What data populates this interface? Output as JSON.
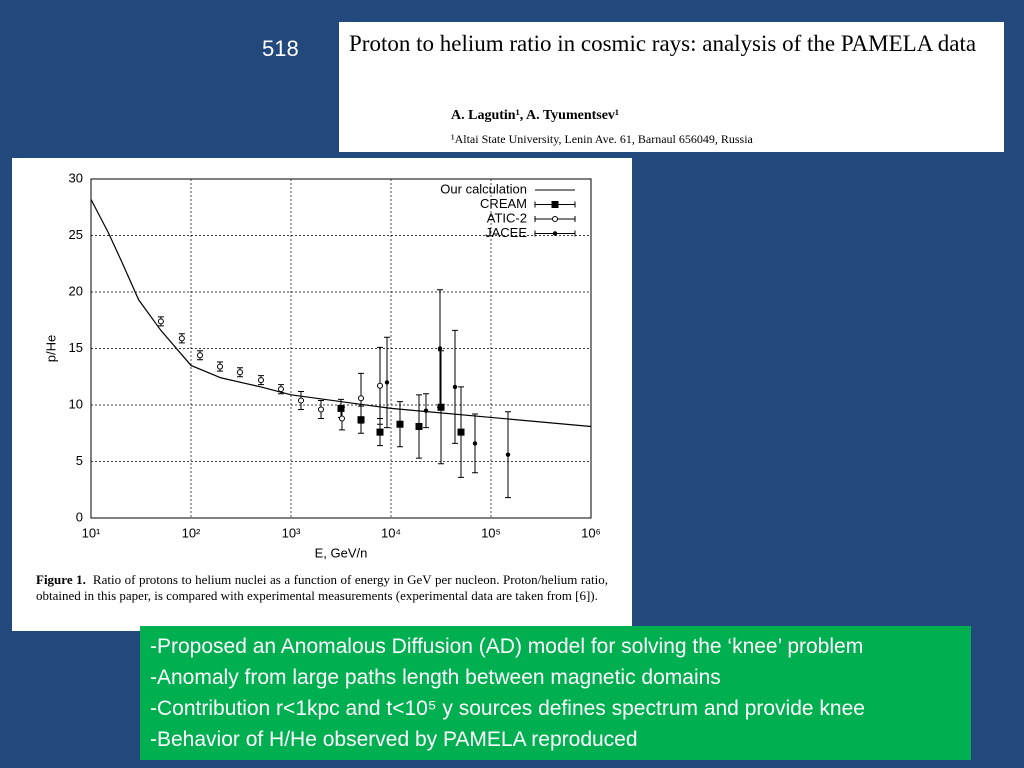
{
  "page_number": "518",
  "paper": {
    "title": "Proton to helium ratio in cosmic rays: analysis of the PAMELA data",
    "authors": "A. Lagutin¹, A. Tyumentsev¹",
    "affiliation": "¹Altai State University, Lenin Ave. 61, Barnaul 656049, Russia"
  },
  "chart_data": {
    "type": "scatter",
    "x_label": "E, GeV/n",
    "y_label": "p/He",
    "xscale": "log",
    "grid": true,
    "legend": "top-right",
    "xlim": [
      10,
      1000000
    ],
    "xticks": [
      {
        "value": 10,
        "label": "10¹"
      },
      {
        "value": 100,
        "label": "10²"
      },
      {
        "value": 1000,
        "label": "10³"
      },
      {
        "value": 10000,
        "label": "10⁴"
      },
      {
        "value": 100000,
        "label": "10⁵"
      },
      {
        "value": 1000000,
        "label": "10⁶"
      }
    ],
    "ylim": [
      0,
      30
    ],
    "yticks": [
      0,
      5,
      10,
      15,
      20,
      25,
      30
    ],
    "series": [
      {
        "name": "Our calculation",
        "style": "line",
        "color": "#000000",
        "x": [
          10,
          15,
          20,
          30,
          50,
          100,
          200,
          500,
          1000,
          10000,
          100000,
          1000000
        ],
        "values": [
          28.2,
          25.2,
          22.8,
          19.3,
          16.6,
          13.5,
          12.4,
          11.6,
          10.9,
          9.7,
          8.9,
          8.1
        ]
      },
      {
        "name": "CREAM",
        "style": "errorbar",
        "marker": "square",
        "color": "#000000",
        "x": [
          3162,
          5012,
          7762,
          12300,
          19055,
          31623,
          50119
        ],
        "values": [
          9.7,
          8.7,
          7.6,
          8.3,
          8.1,
          9.8,
          7.6
        ],
        "errors": [
          0.8,
          1.2,
          1.2,
          2,
          2.8,
          5,
          4
        ]
      },
      {
        "name": "ATIC-2",
        "style": "errorbar",
        "marker": "circle-open",
        "color": "#000000",
        "x": [
          50,
          81,
          123,
          195,
          309,
          501,
          794,
          1259,
          1995,
          3236,
          5012,
          7762
        ],
        "values": [
          17.4,
          15.9,
          14.4,
          13.4,
          12.9,
          12.2,
          11.4,
          10.4,
          9.6,
          8.8,
          10.6,
          11.7
        ],
        "errors": [
          0.4,
          0.4,
          0.4,
          0.4,
          0.4,
          0.4,
          0.4,
          0.8,
          0.8,
          1,
          2.2,
          3.4
        ]
      },
      {
        "name": "JACEE",
        "style": "errorbar",
        "marker": "circle",
        "color": "#000000",
        "x": [
          9120,
          22387,
          30903,
          43652,
          69183,
          147911
        ],
        "values": [
          12,
          9.5,
          15,
          11.6,
          6.6,
          5.6
        ],
        "errors": [
          4,
          1.5,
          5.2,
          5,
          2.6,
          3.8
        ]
      }
    ]
  },
  "caption": {
    "label": "Figure 1.",
    "text": "Ratio of protons to helium nuclei as a function of energy in GeV per nucleon. Proton/helium ratio, obtained in this paper, is compared with experimental measurements (experimental data are taken from [6])."
  },
  "bullets": [
    "-Proposed an Anomalous Diffusion (AD) model for solving the ‘knee’ problem",
    "-Anomaly from large paths length between magnetic domains",
    "-Contribution r<1kpc and t<10⁵ y sources defines spectrum and provide knee",
    "-Behavior of H/He observed by PAMELA reproduced"
  ]
}
